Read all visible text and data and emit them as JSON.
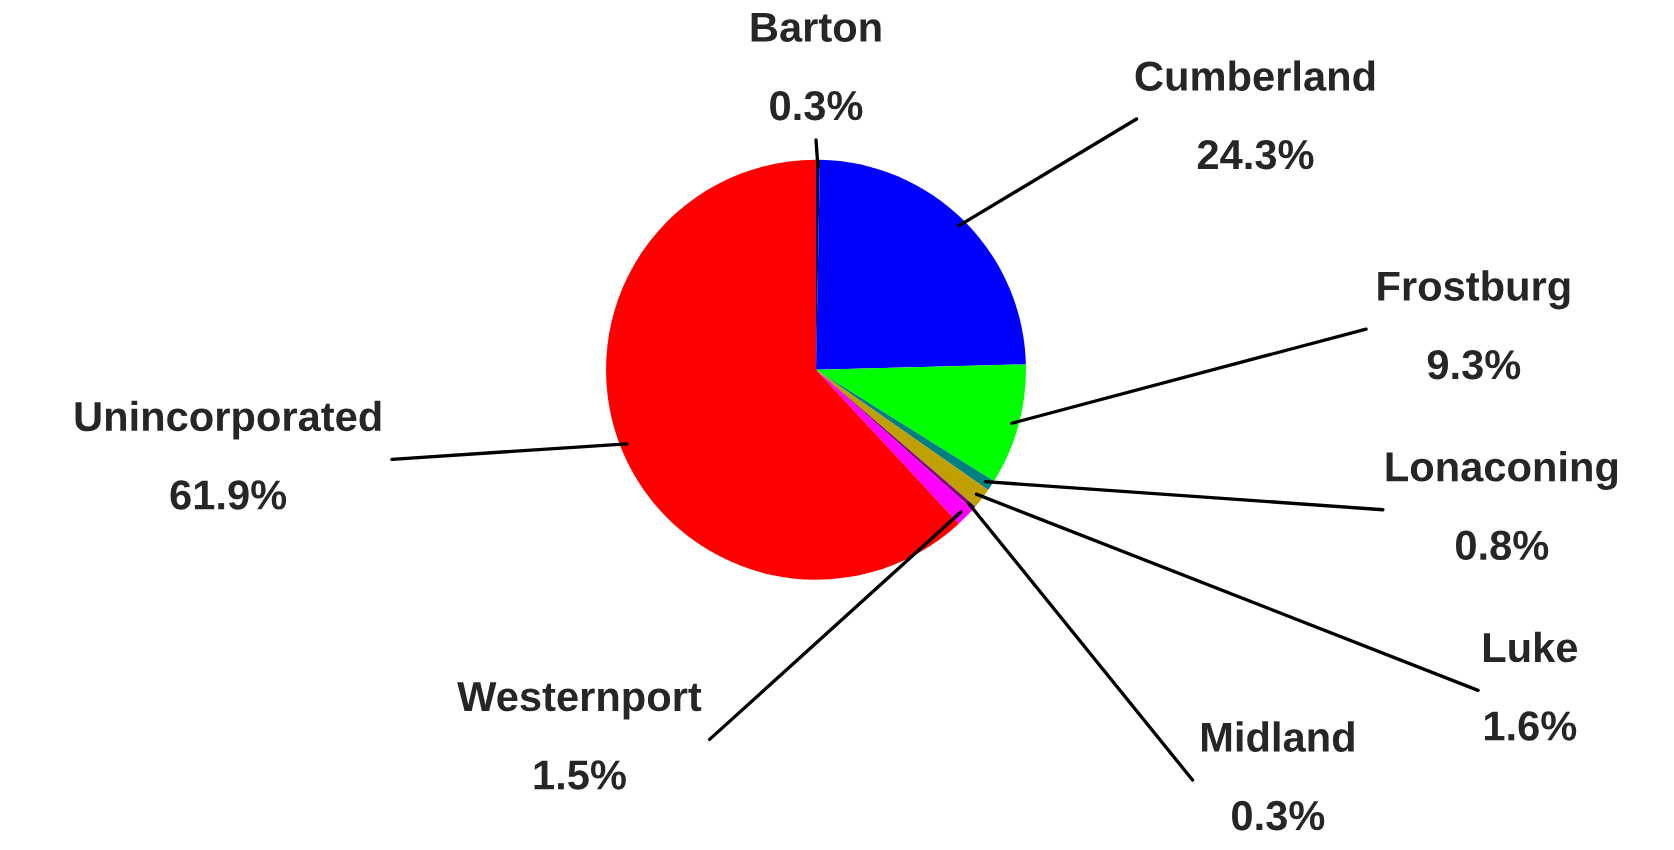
{
  "chart_data": {
    "type": "pie",
    "categories": [
      "Barton",
      "Cumberland",
      "Frostburg",
      "Lonaconing",
      "Luke",
      "Midland",
      "Westernport",
      "Unincorporated"
    ],
    "values": [
      0.3,
      24.3,
      9.3,
      0.8,
      1.6,
      0.3,
      1.5,
      61.9
    ],
    "colors": [
      "#000060",
      "#0000ff",
      "#00ff00",
      "#008080",
      "#c0a000",
      "#800080",
      "#ff00ff",
      "#ff0000"
    ],
    "legend": false,
    "value_labels": [
      "0.3%",
      "24.3%",
      "9.3%",
      "0.8%",
      "1.6%",
      "0.3%",
      "1.5%",
      "61.9%"
    ]
  }
}
